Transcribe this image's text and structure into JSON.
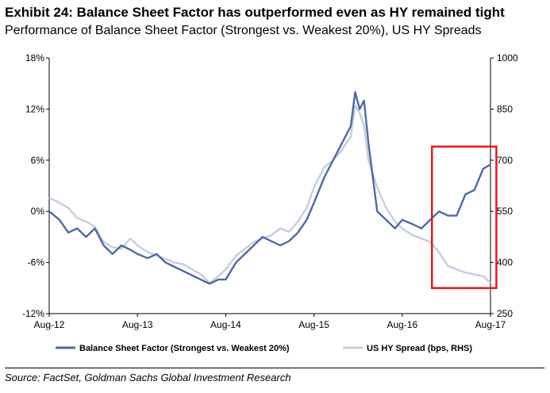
{
  "header": {
    "title": "Exhibit 24: Balance Sheet Factor has outperformed even as HY remained tight",
    "subtitle": "Performance of Balance Sheet Factor (Strongest vs. Weakest 20%), US HY Spreads"
  },
  "footer": {
    "source": "Source: FactSet, Goldman Sachs Global Investment Research"
  },
  "colors": {
    "factor": "#4f6aa1",
    "spread": "#c5cde0",
    "highlight_box": "#e3191f"
  },
  "chart_data": {
    "type": "line",
    "title": "Exhibit 24: Balance Sheet Factor has outperformed even as HY remained tight",
    "subtitle": "Performance of Balance Sheet Factor (Strongest vs. Weakest 20%), US HY Spreads",
    "x_ticks": [
      "Aug-12",
      "Aug-13",
      "Aug-14",
      "Aug-15",
      "Aug-16",
      "Aug-17"
    ],
    "y_left": {
      "ticks": [
        "18%",
        "12%",
        "6%",
        "0%",
        "-6%",
        "-12%"
      ],
      "range": [
        -12,
        18
      ],
      "unit": "%"
    },
    "y_right": {
      "ticks": [
        "1000",
        "850",
        "700",
        "550",
        "400",
        "250"
      ],
      "range": [
        250,
        1000
      ]
    },
    "legend": {
      "position": "bottom"
    },
    "highlight": {
      "x_range": [
        2016.92,
        2017.65
      ],
      "y_left_range": [
        -9,
        7.6
      ]
    },
    "series": [
      {
        "name": "Balance Sheet Factor (Strongest vs. Weakest 20%)",
        "axis": "left",
        "x": [
          2012.583,
          2012.7,
          2012.8,
          2012.9,
          2013.0,
          2013.1,
          2013.2,
          2013.3,
          2013.4,
          2013.5,
          2013.583,
          2013.7,
          2013.8,
          2013.9,
          2014.0,
          2014.1,
          2014.2,
          2014.3,
          2014.4,
          2014.5,
          2014.583,
          2014.7,
          2014.8,
          2014.9,
          2015.0,
          2015.1,
          2015.2,
          2015.3,
          2015.4,
          2015.5,
          2015.583,
          2015.7,
          2015.8,
          2015.9,
          2016.0,
          2016.05,
          2016.1,
          2016.15,
          2016.2,
          2016.3,
          2016.4,
          2016.5,
          2016.583,
          2016.7,
          2016.8,
          2016.9,
          2017.0,
          2017.1,
          2017.2,
          2017.3,
          2017.4,
          2017.5,
          2017.583
        ],
        "values": [
          0,
          -1,
          -2.5,
          -2,
          -3,
          -2,
          -4,
          -5,
          -4,
          -4.5,
          -5,
          -5.5,
          -5,
          -6,
          -6.5,
          -7,
          -7.5,
          -8,
          -8.5,
          -8,
          -8,
          -6,
          -5,
          -4,
          -3,
          -3.5,
          -4,
          -3.5,
          -2.5,
          -1,
          1,
          4,
          6,
          8,
          10,
          14,
          12,
          13,
          8,
          0,
          -1,
          -2,
          -1,
          -1.5,
          -2,
          -1,
          0,
          -0.5,
          -0.5,
          2,
          2.5,
          5,
          5.5
        ]
      },
      {
        "name": "US HY Spread (bps, RHS)",
        "axis": "right",
        "x": [
          2012.583,
          2012.7,
          2012.8,
          2012.9,
          2013.0,
          2013.1,
          2013.2,
          2013.3,
          2013.4,
          2013.5,
          2013.583,
          2013.7,
          2013.8,
          2013.9,
          2014.0,
          2014.1,
          2014.2,
          2014.3,
          2014.4,
          2014.5,
          2014.583,
          2014.7,
          2014.8,
          2014.9,
          2015.0,
          2015.1,
          2015.2,
          2015.3,
          2015.4,
          2015.5,
          2015.583,
          2015.7,
          2015.8,
          2015.9,
          2016.0,
          2016.05,
          2016.1,
          2016.15,
          2016.2,
          2016.3,
          2016.4,
          2016.5,
          2016.583,
          2016.7,
          2016.8,
          2016.9,
          2017.0,
          2017.1,
          2017.2,
          2017.3,
          2017.4,
          2017.5,
          2017.583
        ],
        "values": [
          590,
          575,
          560,
          530,
          520,
          505,
          460,
          445,
          440,
          470,
          450,
          430,
          420,
          410,
          400,
          395,
          380,
          365,
          340,
          360,
          380,
          420,
          440,
          460,
          470,
          480,
          500,
          490,
          520,
          560,
          620,
          680,
          700,
          730,
          770,
          860,
          840,
          800,
          700,
          620,
          560,
          520,
          500,
          480,
          470,
          460,
          430,
          390,
          380,
          370,
          365,
          360,
          340
        ]
      }
    ]
  }
}
